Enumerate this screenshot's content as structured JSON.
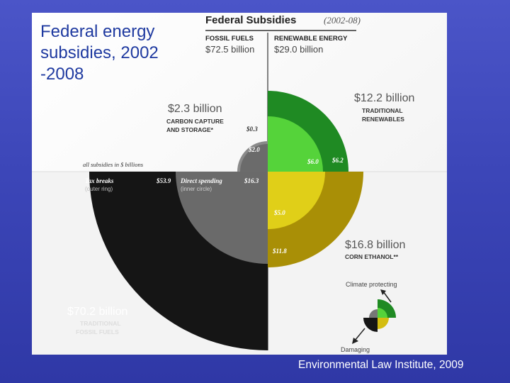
{
  "slide": {
    "title": "Federal energy\nsubsidies, 2002\n-2008",
    "credit": "Environmental Law Institute, 2009"
  },
  "figure": {
    "heading": "Federal Subsidies",
    "period": "(2002-08)",
    "note": "all subsidies in $ billions",
    "fossil": {
      "label": "FOSSIL FUELS",
      "total": "$72.5 billion",
      "tax_breaks_label": "Tax breaks",
      "tax_breaks_sub": "(outer ring)",
      "tax_breaks_value": "$53.9",
      "direct_label": "Direct spending",
      "direct_sub": "(inner circle)",
      "direct_value": "$16.3",
      "traditional_total": "$70.2 billion",
      "traditional_label_1": "TRADITIONAL",
      "traditional_label_2": "FOSSIL FUELS",
      "ccs_total": "$2.3 billion",
      "ccs_label_1": "CARBON CAPTURE",
      "ccs_label_2": "AND STORAGE*",
      "ccs_outer": "$0.3",
      "ccs_inner": "$2.0"
    },
    "renewable": {
      "label": "RENEWABLE ENERGY",
      "total": "$29.0 billion",
      "traditional_total": "$12.2 billion",
      "traditional_label_1": "TRADITIONAL",
      "traditional_label_2": "RENEWABLES",
      "trad_inner": "$6.0",
      "trad_outer": "$6.2",
      "ethanol_total": "$16.8 billion",
      "ethanol_label": "CORN ETHANOL**",
      "ethanol_inner": "$5.0",
      "ethanol_outer": "$11.8"
    },
    "legend": {
      "climate_protecting": "Climate protecting",
      "damaging": "Damaging"
    },
    "colors": {
      "fossil_outer": "#151515",
      "fossil_inner": "#6a6a6a",
      "green_outer": "#1f8a23",
      "green_inner": "#55d33a",
      "yellow_outer": "#a98f06",
      "yellow_inner": "#e0cf18",
      "ccs": "#777777"
    }
  }
}
